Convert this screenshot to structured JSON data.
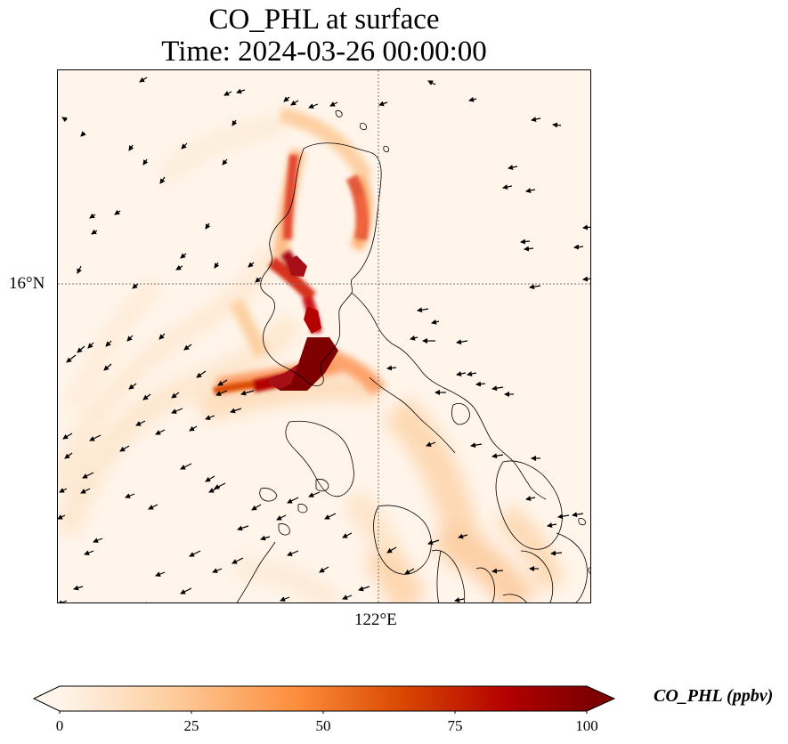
{
  "title": {
    "line1": "CO_PHL at surface",
    "line2": "Time: 2024-03-26 00:00:00"
  },
  "axes": {
    "latitude_label": "16°N",
    "longitude_label": "122°E",
    "gridlines": "dotted"
  },
  "colorbar": {
    "label": "CO_PHL (ppbv)",
    "ticks": [
      "0",
      "25",
      "50",
      "75",
      "100"
    ],
    "min": 0,
    "max": 100,
    "extend": "both",
    "colormap": [
      "#fff5eb",
      "#fdd0a2",
      "#fd8d3c",
      "#d94801",
      "#b30000",
      "#7f0000"
    ]
  },
  "map": {
    "field": "CO_PHL",
    "level": "surface",
    "features": [
      "coastlines",
      "wind-vectors",
      "concentration-field"
    ],
    "background_color": "#fff5eb",
    "coastline_color": "#000000"
  }
}
